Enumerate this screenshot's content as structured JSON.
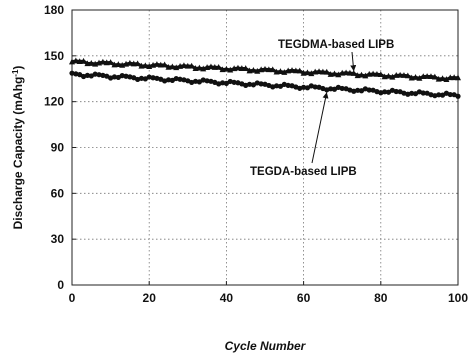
{
  "chart_data": {
    "type": "scatter",
    "xlabel": "Cycle Number",
    "ylabel_main": "Discharge Capacity (mAhg",
    "ylabel_sup": "-1",
    "ylabel_end": ")",
    "xlim": [
      0,
      100
    ],
    "ylim": [
      0,
      180
    ],
    "xticks": [
      0,
      20,
      40,
      60,
      80,
      100
    ],
    "yticks": [
      0,
      30,
      60,
      90,
      120,
      150,
      180
    ],
    "xtick_labels": [
      "0",
      "20",
      "40",
      "60",
      "80",
      "100"
    ],
    "ytick_labels": [
      "0",
      "30",
      "60",
      "90",
      "120",
      "150",
      "180"
    ],
    "grid": true,
    "series": [
      {
        "name": "TEGDMA-based LIPB",
        "color": "#111111",
        "marker": "triangle",
        "start": 146,
        "end": 135
      },
      {
        "name": "TEGDA-based LIPB",
        "color": "#111111",
        "marker": "circle",
        "start": 138,
        "end": 124
      }
    ],
    "annotations": [
      {
        "text": "TEGDMA-based LIPB",
        "series": 0,
        "arrow_to_x": 73
      },
      {
        "text": "TEGDA-based LIPB",
        "series": 1,
        "arrow_to_x": 66
      }
    ]
  }
}
